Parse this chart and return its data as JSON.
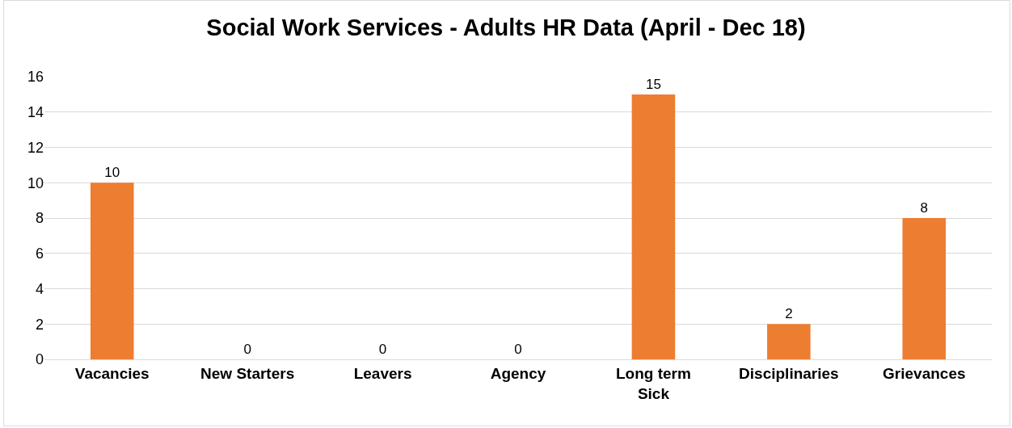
{
  "chart_data": {
    "type": "bar",
    "title": "Social Work Services - Adults HR Data (April - Dec 18)",
    "categories": [
      "Vacancies",
      "New Starters",
      "Leavers",
      "Agency",
      "Long term Sick",
      "Disciplinaries",
      "Grievances"
    ],
    "values": [
      10,
      0,
      0,
      0,
      15,
      2,
      8
    ],
    "color": "#ed7d31",
    "ylim": [
      0,
      16
    ],
    "yticks": [
      0,
      2,
      4,
      6,
      8,
      10,
      12,
      14,
      16
    ],
    "grid": "y",
    "data_labels": true
  }
}
